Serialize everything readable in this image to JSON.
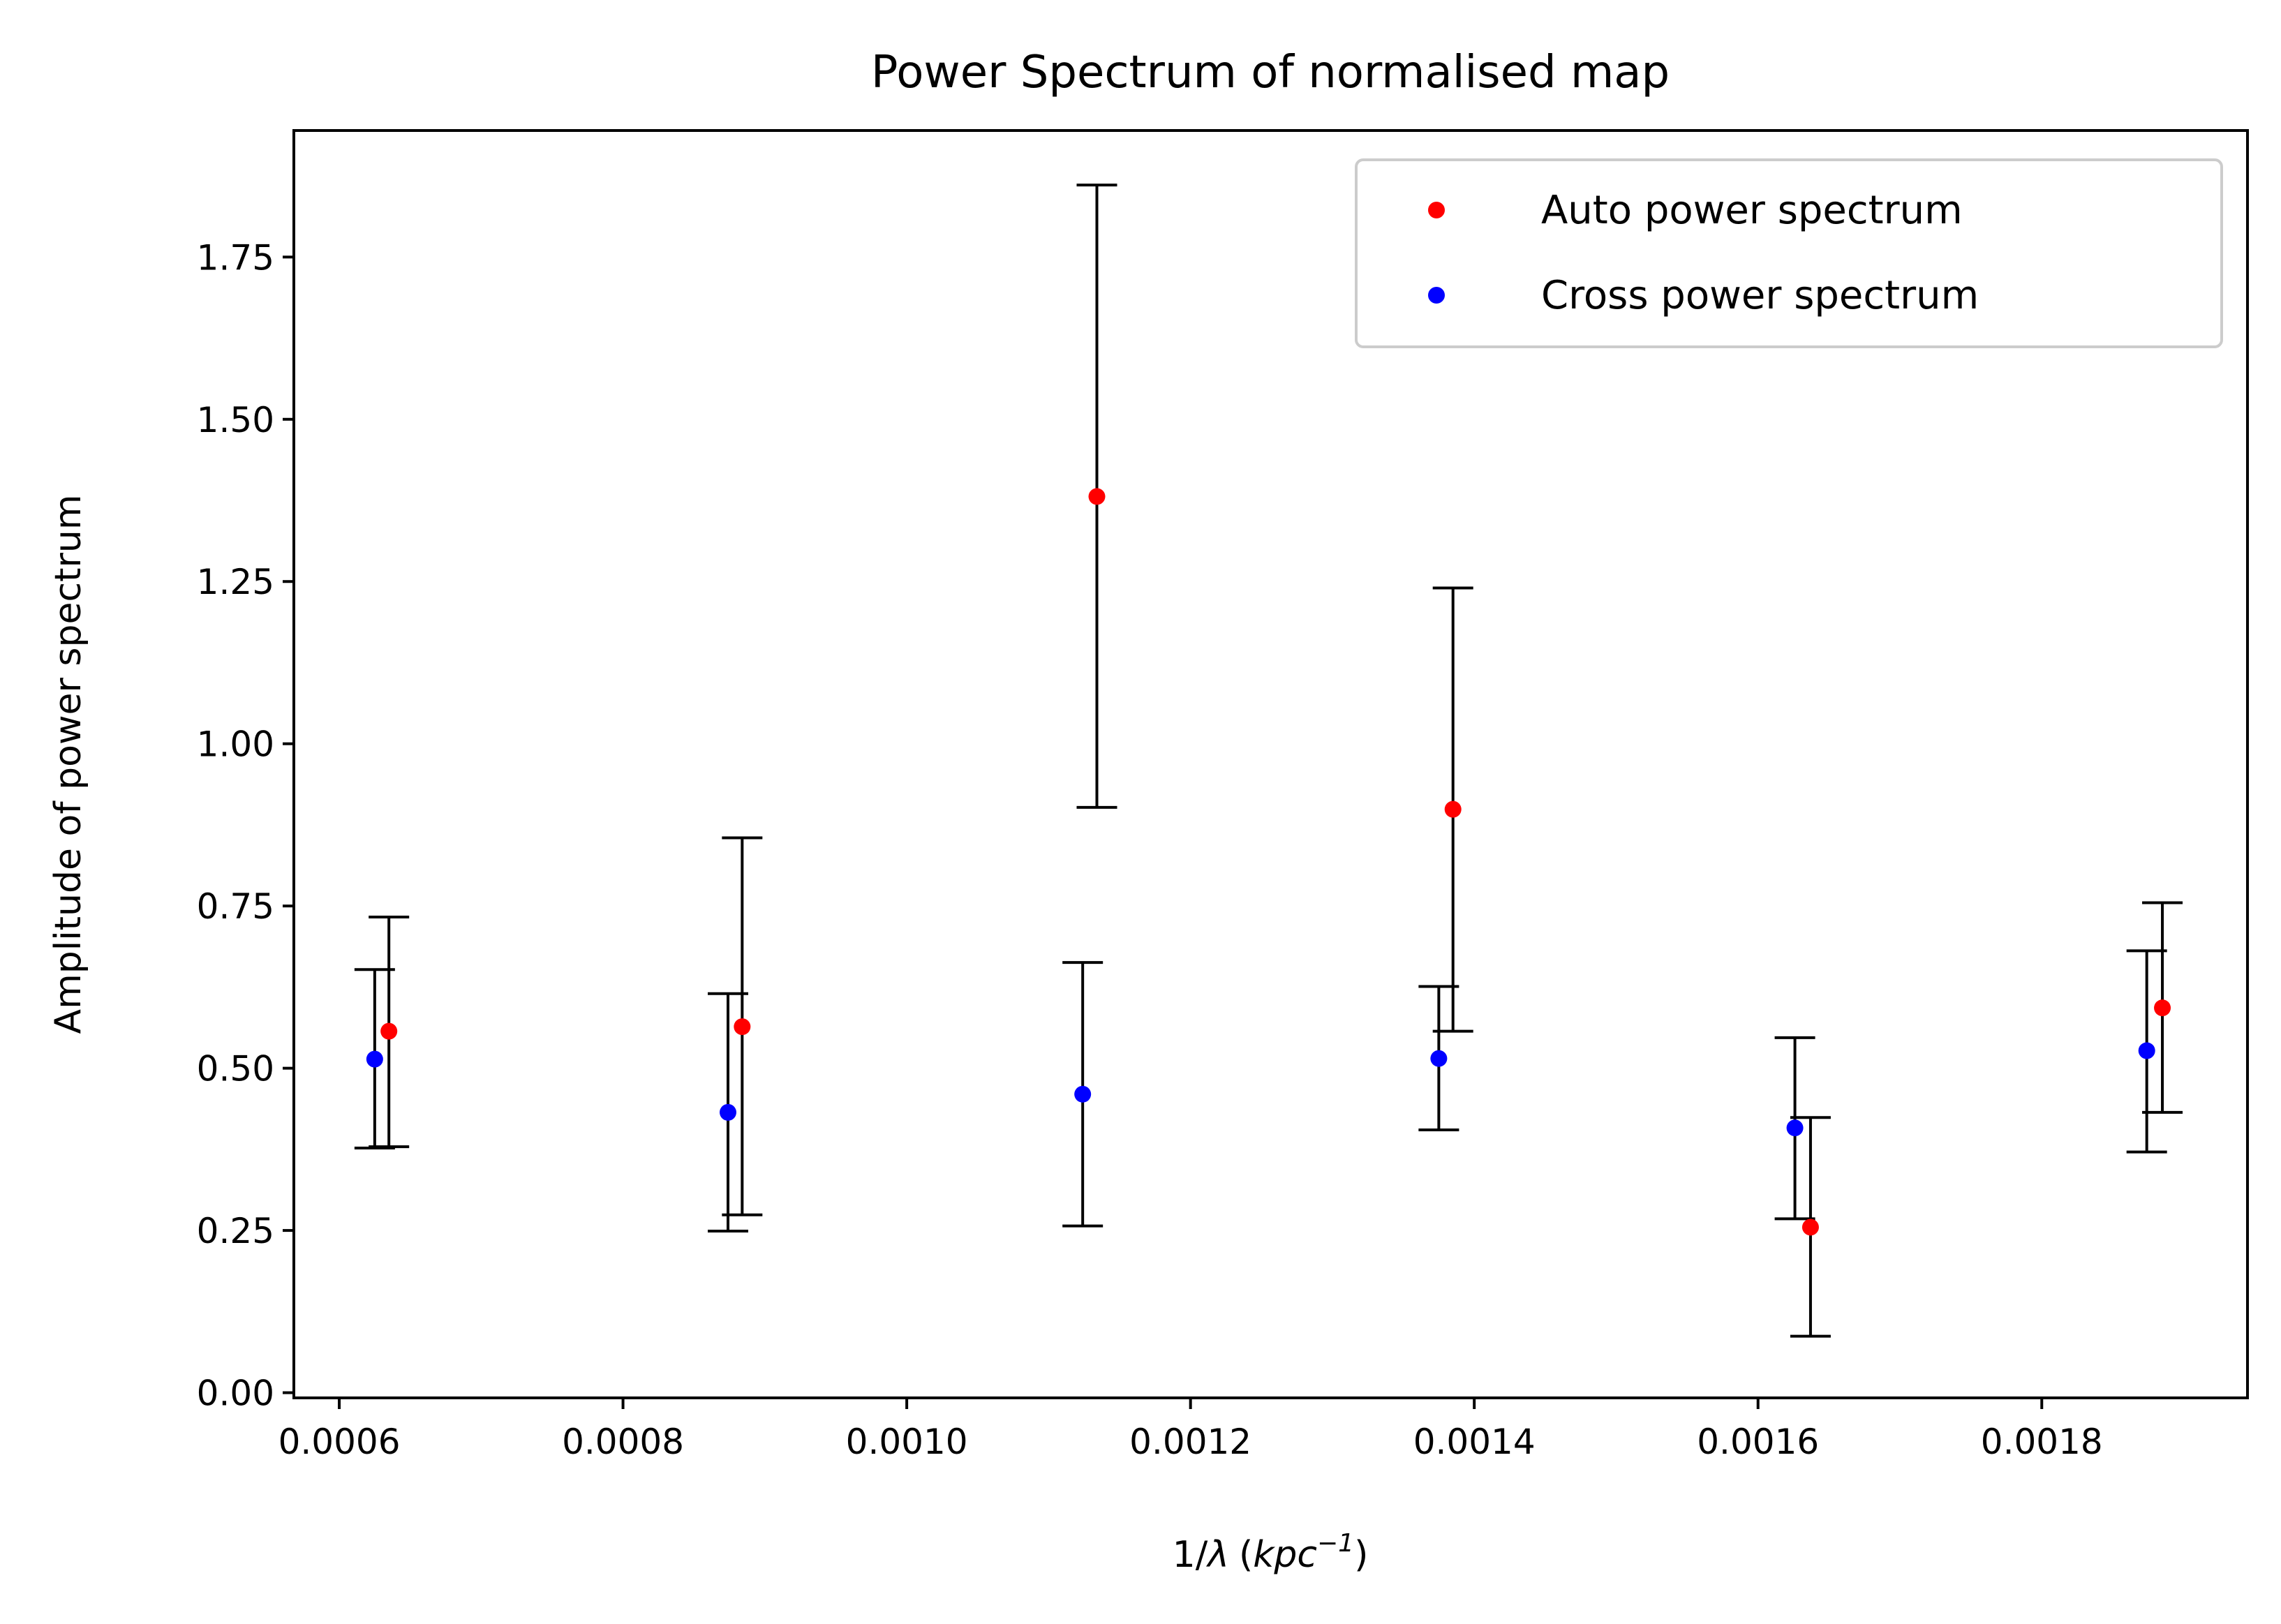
{
  "chart_data": {
    "type": "scatter",
    "title": "Power Spectrum of normalised map",
    "xlabel": "1/λ (kpc⁻¹)",
    "xlabel_parts": {
      "prefix": "1/",
      "lambda": "λ",
      "paren_open": "(",
      "unit": "kpc",
      "exponent": "−1",
      "paren_close": ")"
    },
    "ylabel": "Amplitude of power spectrum",
    "xlim": [
      0.000568,
      0.001945
    ],
    "ylim": [
      -0.008,
      1.945
    ],
    "xticks": [
      "0.0006",
      "0.0008",
      "0.0010",
      "0.0012",
      "0.0014",
      "0.0016",
      "0.0018"
    ],
    "yticks": [
      "0.00",
      "0.25",
      "0.50",
      "0.75",
      "1.00",
      "1.25",
      "1.50",
      "1.75"
    ],
    "legend_position": "top-right",
    "grid": false,
    "series": [
      {
        "name": "Auto power spectrum",
        "color": "#ff0000",
        "points": [
          {
            "x": 0.000635,
            "y": 0.557,
            "lo": 0.379,
            "hi": 0.733
          },
          {
            "x": 0.000884,
            "y": 0.564,
            "lo": 0.274,
            "hi": 0.855
          },
          {
            "x": 0.001134,
            "y": 1.381,
            "lo": 0.902,
            "hi": 1.861
          },
          {
            "x": 0.001385,
            "y": 0.899,
            "lo": 0.557,
            "hi": 1.24
          },
          {
            "x": 0.001637,
            "y": 0.255,
            "lo": 0.087,
            "hi": 0.424
          },
          {
            "x": 0.001885,
            "y": 0.593,
            "lo": 0.432,
            "hi": 0.755
          }
        ]
      },
      {
        "name": "Cross power spectrum",
        "color": "#0000ff",
        "points": [
          {
            "x": 0.000625,
            "y": 0.514,
            "lo": 0.377,
            "hi": 0.652
          },
          {
            "x": 0.000874,
            "y": 0.432,
            "lo": 0.249,
            "hi": 0.615
          },
          {
            "x": 0.001124,
            "y": 0.46,
            "lo": 0.257,
            "hi": 0.663
          },
          {
            "x": 0.001375,
            "y": 0.515,
            "lo": 0.405,
            "hi": 0.626
          },
          {
            "x": 0.001626,
            "y": 0.408,
            "lo": 0.268,
            "hi": 0.547
          },
          {
            "x": 0.001874,
            "y": 0.527,
            "lo": 0.371,
            "hi": 0.681
          }
        ]
      }
    ]
  }
}
